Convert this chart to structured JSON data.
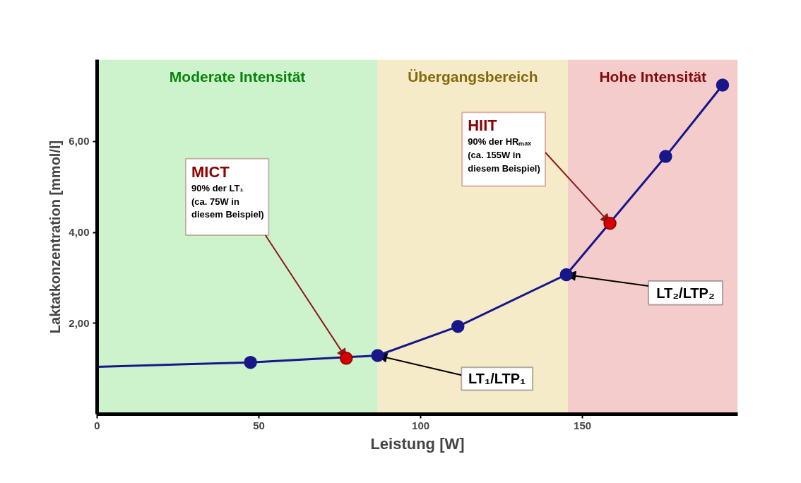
{
  "chart_data": {
    "type": "line",
    "xlabel": "Leistung [W]",
    "ylabel": "Laktatkonzentration [mmol/l]",
    "xlim": [
      0,
      198
    ],
    "ylim": [
      0,
      7.8
    ],
    "xticks": [
      0,
      50,
      100,
      150
    ],
    "yticks": [
      {
        "value": 2,
        "label": "2,00"
      },
      {
        "value": 4,
        "label": "4,00"
      },
      {
        "value": 6,
        "label": "6,00"
      }
    ],
    "grid": false,
    "series": [
      {
        "color": "#17178a",
        "marker": "none",
        "line_style": "solid",
        "x": [
          0,
          47.4,
          86.7,
          111.5,
          145,
          175.7,
          193.3
        ],
        "values": [
          1.04,
          1.14,
          1.29,
          1.93,
          3.07,
          5.67,
          7.24
        ]
      },
      {
        "type": "scatter",
        "color": "#17178a",
        "marker": "circle",
        "x": [
          47.4,
          86.7,
          111.5,
          145,
          175.7,
          193.3
        ],
        "values": [
          1.14,
          1.29,
          1.93,
          3.07,
          5.67,
          7.24
        ]
      },
      {
        "type": "scatter",
        "color": "#d40000",
        "marker": "circle",
        "x": [
          77,
          158.5
        ],
        "values": [
          1.23,
          4.2
        ]
      }
    ],
    "bands": [
      {
        "axis": "x",
        "from": 0,
        "to": 86.7,
        "label": "Moderate Intensität",
        "color": "#cdf3cd"
      },
      {
        "axis": "x",
        "from": 86.7,
        "to": 145.5,
        "label": "Übergangsbereich",
        "color": "#f5ebc9"
      },
      {
        "axis": "x",
        "from": 145.5,
        "to": 198,
        "label": "Hohe Intensität",
        "color": "#f4cccc"
      }
    ],
    "annotations": [
      {
        "text": "MICT\n90% der LT₁\n(ca. 75W in\ndiesem Beispiel)",
        "x": 77,
        "y": 1.23
      },
      {
        "text": "HIIT\n90% der HRₘₐₓ\n(ca. 155W in\ndiesem Beispiel)",
        "x": 158.5,
        "y": 4.2
      },
      {
        "text": "LT₁/LTP₁",
        "x": 86.7,
        "y": 1.29
      },
      {
        "text": "LT₂/LTP₂",
        "x": 145,
        "y": 3.07
      }
    ]
  }
}
